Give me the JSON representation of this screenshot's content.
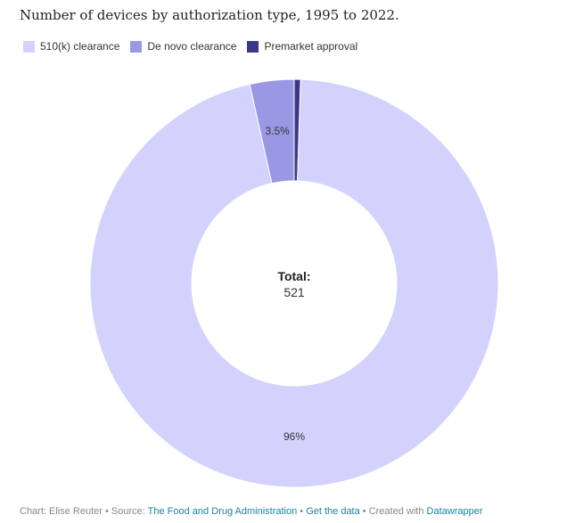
{
  "title": "Number of devices by authorization type, 1995 to 2022.",
  "colors": {
    "510k": "#d3d2fd",
    "denovo": "#9a98e4",
    "pma": "#3a3787"
  },
  "chart_data": {
    "type": "pie",
    "variant": "donut",
    "title": "Number of devices by authorization type, 1995 to 2022.",
    "legend_position": "top-left",
    "slices": [
      {
        "name": "Premarket approval",
        "share": 0.5,
        "label": ""
      },
      {
        "name": "510(k) clearance",
        "share": 96,
        "label": "96%"
      },
      {
        "name": "De novo clearance",
        "share": 3.5,
        "label": "3.5%"
      }
    ],
    "legend": [
      "510(k) clearance",
      "De novo clearance",
      "Premarket approval"
    ],
    "center_label": {
      "title": "Total:",
      "value": "521"
    }
  },
  "footer": {
    "chart_prefix": "Chart: Elise Reuter",
    "sep1": " • Source: ",
    "source": "The Food and Drug Administration",
    "sep2": " • ",
    "get_data": "Get the data",
    "sep3": " • Created with ",
    "tool": "Datawrapper"
  }
}
